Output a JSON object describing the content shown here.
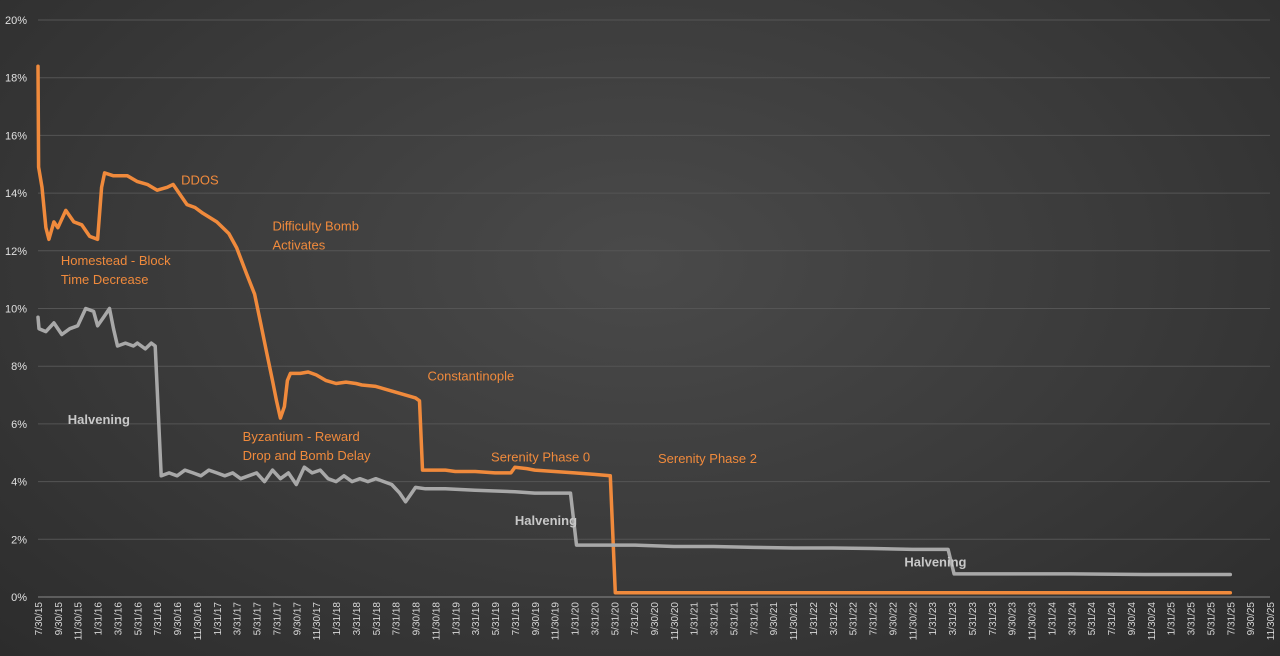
{
  "chart_data": {
    "type": "line",
    "title": "",
    "xlabel": "",
    "ylabel": "",
    "ylim": [
      0,
      20
    ],
    "y_ticks": [
      "0%",
      "2%",
      "4%",
      "6%",
      "8%",
      "10%",
      "12%",
      "14%",
      "16%",
      "18%",
      "20%"
    ],
    "x_tick_labels": [
      "7/30/15",
      "9/30/15",
      "11/30/15",
      "1/31/16",
      "3/31/16",
      "5/31/16",
      "7/31/16",
      "9/30/16",
      "11/30/16",
      "1/31/17",
      "3/31/17",
      "5/31/17",
      "7/31/17",
      "9/30/17",
      "11/30/17",
      "1/31/18",
      "3/31/18",
      "5/31/18",
      "7/31/18",
      "9/30/18",
      "11/30/18",
      "1/31/19",
      "3/31/19",
      "5/31/19",
      "7/31/19",
      "9/30/19",
      "11/30/19",
      "1/31/20",
      "3/31/20",
      "5/31/20",
      "7/31/20",
      "9/30/20",
      "11/30/20",
      "1/31/21",
      "3/31/21",
      "5/31/21",
      "7/31/21",
      "9/30/21",
      "11/30/21",
      "1/31/22",
      "3/31/22",
      "5/31/22",
      "7/31/22",
      "9/30/22",
      "11/30/22",
      "1/31/23",
      "3/31/23",
      "5/31/23",
      "7/31/23",
      "9/30/23",
      "11/30/23",
      "1/31/24",
      "3/31/24",
      "5/31/24",
      "7/31/24",
      "9/30/24",
      "11/30/24",
      "1/31/25",
      "3/31/25",
      "5/31/25",
      "7/31/25",
      "9/30/25",
      "11/30/25"
    ],
    "grid": true,
    "legend": "none",
    "series": [
      {
        "color": "#f08a3c",
        "points": [
          [
            0,
            18.4
          ],
          [
            0.03,
            14.9
          ],
          [
            0.2,
            14.2
          ],
          [
            0.4,
            12.8
          ],
          [
            0.55,
            12.4
          ],
          [
            0.8,
            13.0
          ],
          [
            1.0,
            12.8
          ],
          [
            1.4,
            13.4
          ],
          [
            1.8,
            13.0
          ],
          [
            2.2,
            12.9
          ],
          [
            2.6,
            12.5
          ],
          [
            3.0,
            12.4
          ],
          [
            3.2,
            14.2
          ],
          [
            3.35,
            14.7
          ],
          [
            3.8,
            14.6
          ],
          [
            4.5,
            14.6
          ],
          [
            5.0,
            14.4
          ],
          [
            5.5,
            14.3
          ],
          [
            6.0,
            14.1
          ],
          [
            6.5,
            14.2
          ],
          [
            6.8,
            14.3
          ],
          [
            7.0,
            14.1
          ],
          [
            7.5,
            13.6
          ],
          [
            7.9,
            13.5
          ],
          [
            8.3,
            13.3
          ],
          [
            9.0,
            13.0
          ],
          [
            9.6,
            12.6
          ],
          [
            10.0,
            12.1
          ],
          [
            10.5,
            11.2
          ],
          [
            10.9,
            10.5
          ],
          [
            11.2,
            9.5
          ],
          [
            11.5,
            8.5
          ],
          [
            11.8,
            7.5
          ],
          [
            12.0,
            6.8
          ],
          [
            12.2,
            6.2
          ],
          [
            12.4,
            6.6
          ],
          [
            12.55,
            7.5
          ],
          [
            12.7,
            7.75
          ],
          [
            13.2,
            7.75
          ],
          [
            13.6,
            7.8
          ],
          [
            14.0,
            7.7
          ],
          [
            14.5,
            7.5
          ],
          [
            15.0,
            7.4
          ],
          [
            15.5,
            7.45
          ],
          [
            16.0,
            7.4
          ],
          [
            16.3,
            7.35
          ],
          [
            17.0,
            7.3
          ],
          [
            17.5,
            7.2
          ],
          [
            18.0,
            7.1
          ],
          [
            18.5,
            7.0
          ],
          [
            19.0,
            6.9
          ],
          [
            19.2,
            6.8
          ],
          [
            19.35,
            4.4
          ],
          [
            19.8,
            4.4
          ],
          [
            20.5,
            4.4
          ],
          [
            21.0,
            4.35
          ],
          [
            22.0,
            4.35
          ],
          [
            23.0,
            4.3
          ],
          [
            23.8,
            4.3
          ],
          [
            24.0,
            4.5
          ],
          [
            24.6,
            4.45
          ],
          [
            25.0,
            4.4
          ],
          [
            26.0,
            4.35
          ],
          [
            27.0,
            4.3
          ],
          [
            28.0,
            4.25
          ],
          [
            28.8,
            4.2
          ],
          [
            29.05,
            0.15
          ],
          [
            60.0,
            0.15
          ]
        ]
      },
      {
        "color": "#a8a8a8",
        "points": [
          [
            0,
            9.7
          ],
          [
            0.05,
            9.3
          ],
          [
            0.4,
            9.2
          ],
          [
            0.8,
            9.5
          ],
          [
            1.2,
            9.1
          ],
          [
            1.6,
            9.3
          ],
          [
            2.0,
            9.4
          ],
          [
            2.4,
            10.0
          ],
          [
            2.8,
            9.9
          ],
          [
            3.0,
            9.4
          ],
          [
            3.3,
            9.7
          ],
          [
            3.6,
            10.0
          ],
          [
            3.8,
            9.3
          ],
          [
            4.0,
            8.7
          ],
          [
            4.4,
            8.8
          ],
          [
            4.8,
            8.7
          ],
          [
            5.0,
            8.8
          ],
          [
            5.4,
            8.6
          ],
          [
            5.7,
            8.8
          ],
          [
            5.9,
            8.7
          ],
          [
            6.2,
            4.2
          ],
          [
            6.6,
            4.3
          ],
          [
            7.0,
            4.2
          ],
          [
            7.4,
            4.4
          ],
          [
            7.8,
            4.3
          ],
          [
            8.2,
            4.2
          ],
          [
            8.6,
            4.4
          ],
          [
            9.0,
            4.3
          ],
          [
            9.4,
            4.2
          ],
          [
            9.8,
            4.3
          ],
          [
            10.2,
            4.1
          ],
          [
            10.6,
            4.2
          ],
          [
            11.0,
            4.3
          ],
          [
            11.4,
            4.0
          ],
          [
            11.8,
            4.4
          ],
          [
            12.2,
            4.1
          ],
          [
            12.6,
            4.3
          ],
          [
            13.0,
            3.9
          ],
          [
            13.4,
            4.5
          ],
          [
            13.8,
            4.3
          ],
          [
            14.2,
            4.4
          ],
          [
            14.6,
            4.1
          ],
          [
            15.0,
            4.0
          ],
          [
            15.4,
            4.2
          ],
          [
            15.8,
            4.0
          ],
          [
            16.2,
            4.1
          ],
          [
            16.6,
            4.0
          ],
          [
            17.0,
            4.1
          ],
          [
            17.4,
            4.0
          ],
          [
            17.8,
            3.9
          ],
          [
            18.2,
            3.6
          ],
          [
            18.5,
            3.3
          ],
          [
            18.8,
            3.6
          ],
          [
            19.0,
            3.8
          ],
          [
            19.5,
            3.75
          ],
          [
            20.5,
            3.75
          ],
          [
            22.0,
            3.7
          ],
          [
            24.0,
            3.65
          ],
          [
            25.0,
            3.6
          ],
          [
            26.8,
            3.6
          ],
          [
            27.1,
            1.8
          ],
          [
            28.0,
            1.8
          ],
          [
            30.0,
            1.8
          ],
          [
            32.0,
            1.75
          ],
          [
            34.0,
            1.75
          ],
          [
            36.0,
            1.72
          ],
          [
            38.0,
            1.7
          ],
          [
            40.0,
            1.7
          ],
          [
            42.0,
            1.68
          ],
          [
            44.0,
            1.65
          ],
          [
            45.8,
            1.65
          ],
          [
            46.1,
            0.8
          ],
          [
            48.0,
            0.8
          ],
          [
            52.0,
            0.8
          ],
          [
            56.0,
            0.78
          ],
          [
            60.0,
            0.78
          ]
        ]
      }
    ],
    "annotations": [
      {
        "lines": [
          "DDOS"
        ],
        "x": 7.2,
        "y": 14.3,
        "color": "#f08a3c",
        "bold": false
      },
      {
        "lines": [
          "Homestead - Block",
          "Time Decrease"
        ],
        "x": 1.15,
        "y": 11.5,
        "color": "#f08a3c",
        "bold": false
      },
      {
        "lines": [
          "Difficulty Bomb",
          "Activates"
        ],
        "x": 11.8,
        "y": 12.7,
        "color": "#f08a3c",
        "bold": false
      },
      {
        "lines": [
          "Byzantium - Reward",
          "Drop and Bomb Delay"
        ],
        "x": 10.3,
        "y": 5.4,
        "color": "#f08a3c",
        "bold": false
      },
      {
        "lines": [
          "Constantinople"
        ],
        "x": 19.6,
        "y": 7.5,
        "color": "#f08a3c",
        "bold": false
      },
      {
        "lines": [
          "Serenity Phase 0"
        ],
        "x": 22.8,
        "y": 4.7,
        "color": "#f08a3c",
        "bold": false
      },
      {
        "lines": [
          "Serenity Phase 2"
        ],
        "x": 31.2,
        "y": 4.65,
        "color": "#f08a3c",
        "bold": false
      },
      {
        "lines": [
          "Halvening"
        ],
        "x": 1.5,
        "y": 6.0,
        "color": "#c8c8c8",
        "bold": true
      },
      {
        "lines": [
          "Halvening"
        ],
        "x": 24.0,
        "y": 2.5,
        "color": "#c8c8c8",
        "bold": true
      },
      {
        "lines": [
          "Halvening"
        ],
        "x": 43.6,
        "y": 1.05,
        "color": "#c8c8c8",
        "bold": true
      }
    ]
  }
}
